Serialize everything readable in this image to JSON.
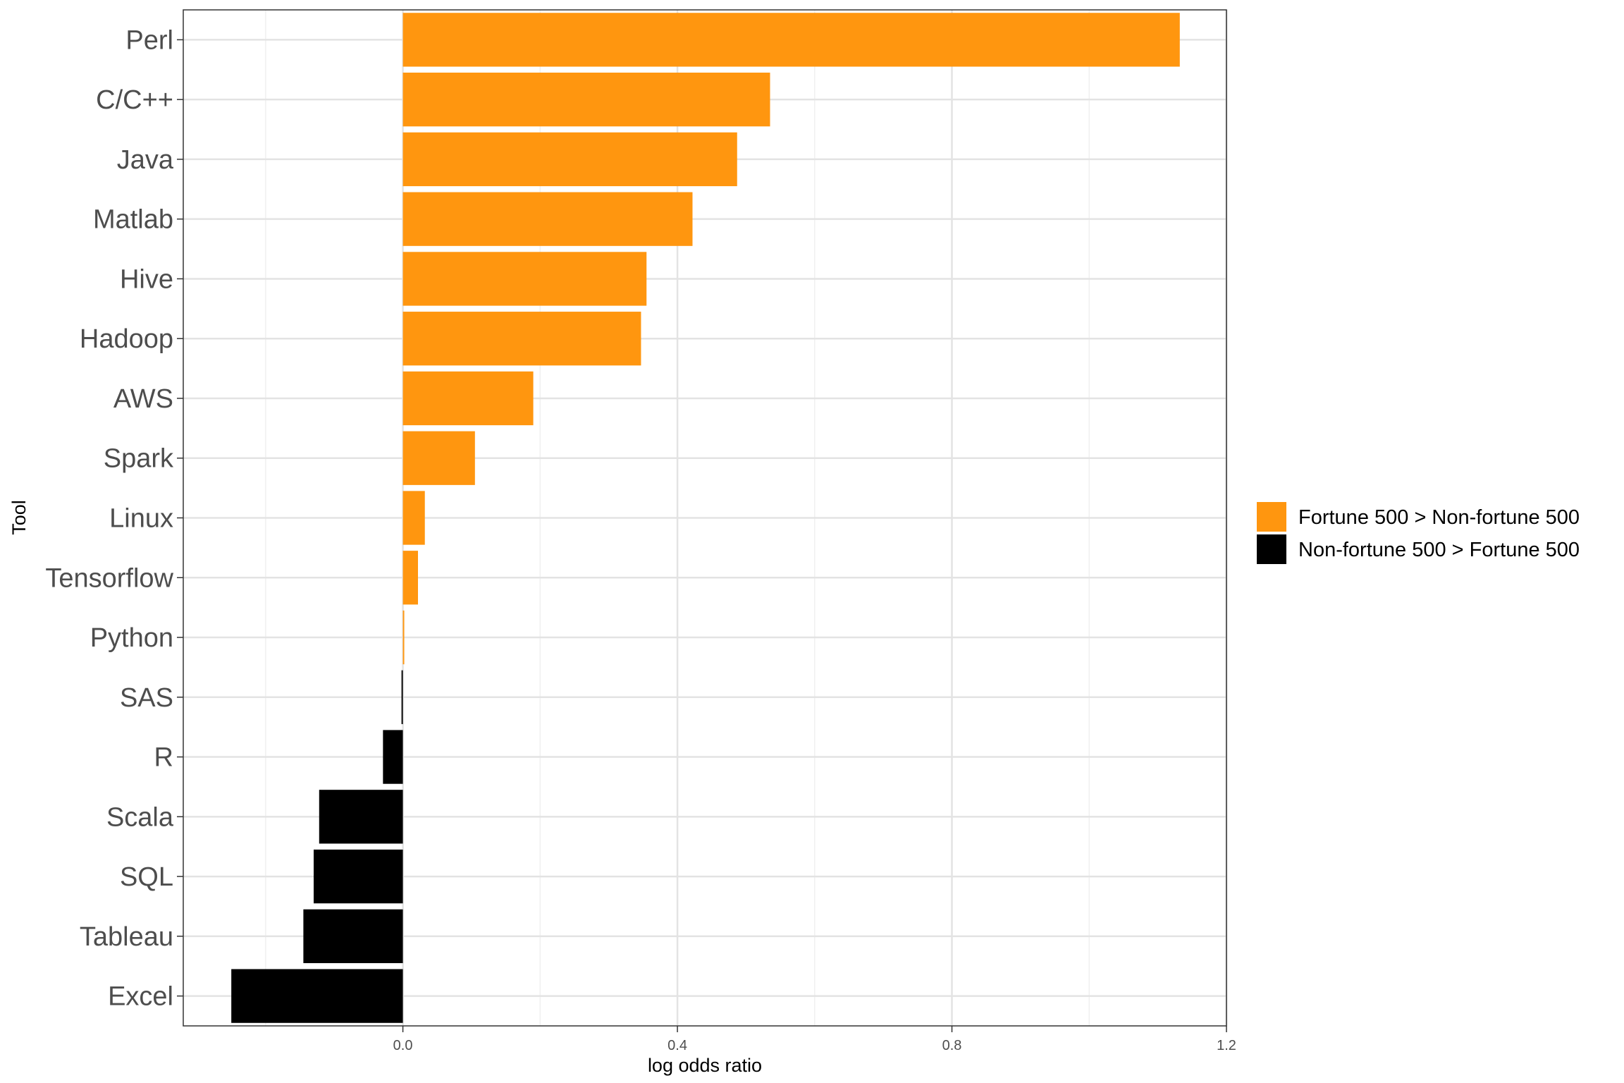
{
  "chart_data": {
    "type": "bar",
    "orientation": "horizontal",
    "categories": [
      "Perl",
      "C/C++",
      "Java",
      "Matlab",
      "Hive",
      "Hadoop",
      "AWS",
      "Spark",
      "Linux",
      "Tensorflow",
      "Python",
      "SAS",
      "R",
      "Scala",
      "SQL",
      "Tableau",
      "Excel"
    ],
    "values": [
      1.132,
      0.535,
      0.487,
      0.422,
      0.355,
      0.347,
      0.19,
      0.105,
      0.032,
      0.022,
      0.002,
      -0.002,
      -0.029,
      -0.122,
      -0.13,
      -0.145,
      -0.25
    ],
    "xlabel": "log odds ratio",
    "ylabel": "Tool",
    "xlim": [
      -0.32,
      1.2
    ],
    "xticks": [
      0.0,
      0.4,
      0.8,
      1.2
    ],
    "xtick_labels": [
      "0.0",
      "0.4",
      "0.8",
      "1.2"
    ],
    "grid": true,
    "legend": {
      "position": "right",
      "entries": [
        {
          "label": "Fortune 500 > Non-fortune 500",
          "color": "#FF960F"
        },
        {
          "label": "Non-fortune 500 > Fortune 500",
          "color": "#000000"
        }
      ]
    },
    "colors": {
      "positive": "#FF960F",
      "negative": "#000000"
    }
  }
}
